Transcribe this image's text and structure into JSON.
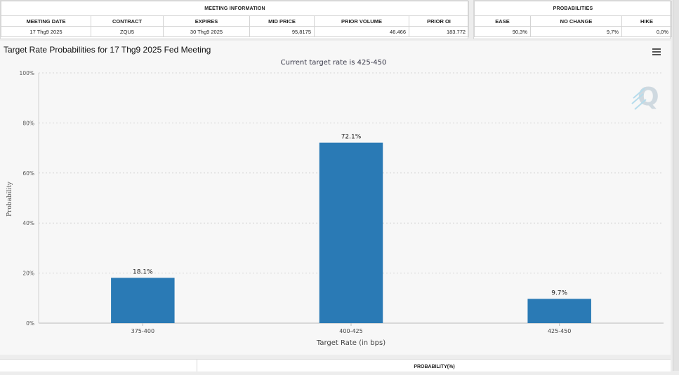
{
  "meeting_info": {
    "group_header": "MEETING INFORMATION",
    "headers": [
      "MEETING DATE",
      "CONTRACT",
      "EXPIRES",
      "MID PRICE",
      "PRIOR VOLUME",
      "PRIOR OI"
    ],
    "row": [
      "17 Thg9 2025",
      "ZQU5",
      "30 Thg9 2025",
      "95,8175",
      "46.466",
      "183.772"
    ]
  },
  "probabilities": {
    "group_header": "PROBABILITIES",
    "headers": [
      "EASE",
      "NO CHANGE",
      "HIKE"
    ],
    "row": [
      "90,3%",
      "9,7%",
      "0,0%"
    ]
  },
  "chart_title": "Target Rate Probabilities for 17 Thg9 2025 Fed Meeting",
  "bottom_header": "PROBABILITY(%)",
  "icons": {
    "menu": "menu-icon",
    "logo": "q-logo"
  },
  "chart_data": {
    "type": "bar",
    "title": "Target Rate Probabilities for 17 Thg9 2025 Fed Meeting",
    "subtitle": "Current target rate is 425-450",
    "xlabel": "Target Rate (in bps)",
    "ylabel": "Probability",
    "categories": [
      "375-400",
      "400-425",
      "425-450"
    ],
    "values": [
      18.1,
      72.1,
      9.7
    ],
    "data_labels": [
      "18.1%",
      "72.1%",
      "9.7%"
    ],
    "yticks": [
      "0%",
      "20%",
      "40%",
      "60%",
      "80%",
      "100%"
    ],
    "ylim": [
      0,
      100
    ],
    "grid": true,
    "legend": "none",
    "bar_color": "#2a7ab5"
  }
}
